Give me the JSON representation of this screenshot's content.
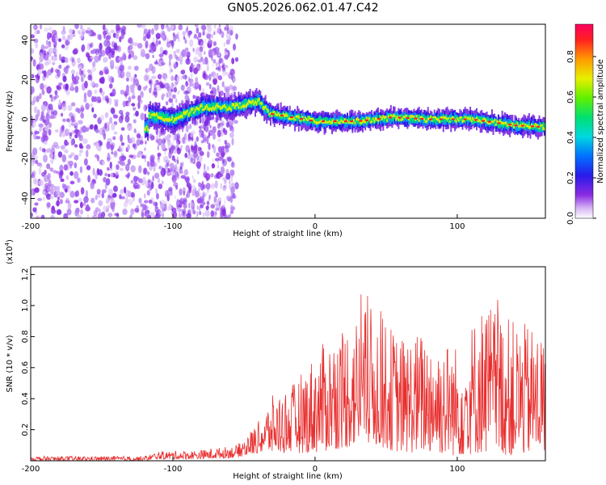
{
  "title": "GN05.2026.062.01.47.C42",
  "chart_data": [
    {
      "type": "heatmap",
      "xlabel": "Height of straight line (km)",
      "ylabel": "Frequency (Hz)",
      "xlim": [
        -200,
        162
      ],
      "ylim": [
        -50,
        48
      ],
      "xticks": [
        "-200",
        "-100",
        "0",
        "100"
      ],
      "yticks": [
        "-40",
        "-20",
        "0",
        "20",
        "40"
      ],
      "colorbar": {
        "label": "Normalized spectral amplitude",
        "range": [
          0,
          0.96
        ],
        "ticks": [
          "0.0",
          "0.2",
          "0.4",
          "0.6",
          "0.8"
        ]
      },
      "ridge": {
        "description_points": [
          {
            "x": -118,
            "y": 2
          },
          {
            "x": -100,
            "y": 0
          },
          {
            "x": -80,
            "y": 6
          },
          {
            "x": -60,
            "y": 6
          },
          {
            "x": -40,
            "y": 9
          },
          {
            "x": -33,
            "y": 3
          },
          {
            "x": 0,
            "y": -1
          },
          {
            "x": 30,
            "y": -1
          },
          {
            "x": 55,
            "y": 1
          },
          {
            "x": 80,
            "y": 0
          },
          {
            "x": 110,
            "y": 0
          },
          {
            "x": 140,
            "y": -3
          },
          {
            "x": 162,
            "y": -4
          }
        ]
      }
    },
    {
      "type": "line",
      "xlabel": "Height of straight line (km)",
      "ylabel": "SNR (10 * v/v)",
      "y_multiplier": "(x10",
      "y_multiplier_exp": "4",
      "y_multiplier_close": ")",
      "xlim": [
        -200,
        162
      ],
      "ylim": [
        0,
        1.25
      ],
      "xticks": [
        "-200",
        "-100",
        "0",
        "100"
      ],
      "yticks": [
        "0.2",
        "0.4",
        "0.6",
        "0.8",
        "1.0",
        "1.2"
      ],
      "color": "#e83030",
      "envelope": [
        {
          "x": -200,
          "lo": 0.0,
          "hi": 0.03
        },
        {
          "x": -120,
          "lo": 0.0,
          "hi": 0.03
        },
        {
          "x": -110,
          "lo": 0.01,
          "hi": 0.06
        },
        {
          "x": -80,
          "lo": 0.01,
          "hi": 0.07
        },
        {
          "x": -55,
          "lo": 0.02,
          "hi": 0.1
        },
        {
          "x": -40,
          "lo": 0.05,
          "hi": 0.25
        },
        {
          "x": -30,
          "lo": 0.05,
          "hi": 0.42
        },
        {
          "x": -15,
          "lo": 0.05,
          "hi": 0.5
        },
        {
          "x": 0,
          "lo": 0.05,
          "hi": 0.7
        },
        {
          "x": 20,
          "lo": 0.08,
          "hi": 0.9
        },
        {
          "x": 40,
          "lo": 0.1,
          "hi": 1.0
        },
        {
          "x": 60,
          "lo": 0.05,
          "hi": 0.8
        },
        {
          "x": 80,
          "lo": 0.05,
          "hi": 0.85
        },
        {
          "x": 100,
          "lo": 0.03,
          "hi": 0.75
        },
        {
          "x": 120,
          "lo": 0.05,
          "hi": 1.05
        },
        {
          "x": 140,
          "lo": 0.03,
          "hi": 0.9
        },
        {
          "x": 162,
          "lo": 0.05,
          "hi": 0.85
        }
      ]
    }
  ]
}
